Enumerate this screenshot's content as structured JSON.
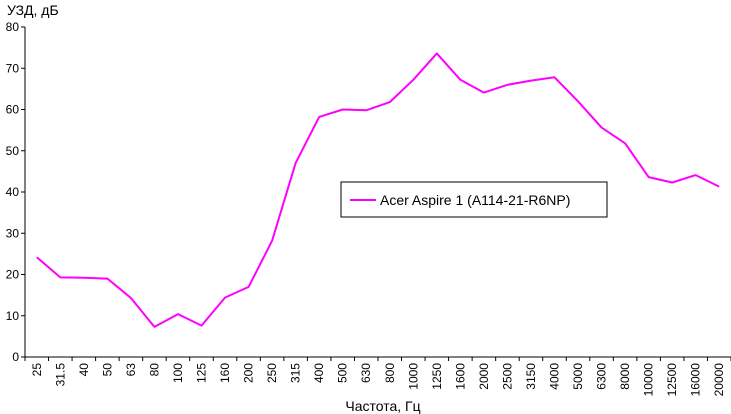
{
  "chart_data": {
    "type": "line",
    "ylabel": "УЗД, дБ",
    "xlabel": "Частота, Гц",
    "ylim": [
      0,
      80
    ],
    "yticks": [
      0,
      10,
      20,
      30,
      40,
      50,
      60,
      70,
      80
    ],
    "categories": [
      "25",
      "31.5",
      "40",
      "50",
      "63",
      "80",
      "100",
      "125",
      "160",
      "200",
      "250",
      "315",
      "400",
      "500",
      "630",
      "800",
      "1000",
      "1250",
      "1600",
      "2000",
      "2500",
      "3150",
      "4000",
      "5000",
      "6300",
      "8000",
      "10000",
      "12500",
      "16000",
      "20000"
    ],
    "series": [
      {
        "name": "Acer Aspire 1 (A114-21-R6NP)",
        "color": "#ff00ff",
        "values": [
          24.2,
          19.3,
          19.2,
          19.0,
          14.3,
          7.3,
          10.4,
          7.6,
          14.4,
          17.0,
          28.2,
          47.0,
          58.2,
          60.0,
          59.8,
          61.8,
          67.2,
          73.6,
          67.2,
          64.1,
          66.0,
          67.0,
          67.8,
          62.0,
          55.6,
          51.8,
          43.6,
          42.3,
          44.1,
          41.3
        ]
      }
    ],
    "legend_position": "center-right",
    "grid": false
  }
}
